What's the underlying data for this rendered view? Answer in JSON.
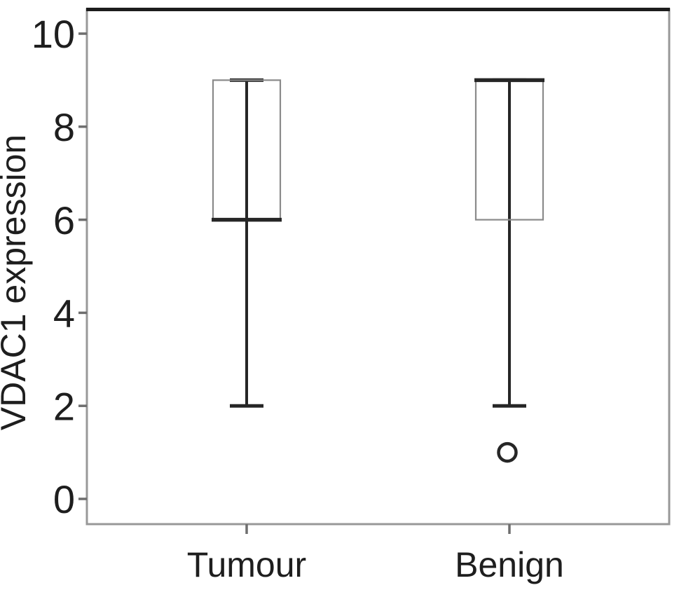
{
  "figure": {
    "background": "#ffffff"
  },
  "chart_data": {
    "type": "boxplot",
    "title": "",
    "ylabel": "VDAC1 expression",
    "xlabel": "",
    "categories": [
      "Tumour",
      "Benign"
    ],
    "yticks": [
      0,
      2,
      4,
      6,
      8,
      10
    ],
    "ylim": [
      -0.55,
      10.6
    ],
    "grid": false,
    "legend": "none",
    "series": [
      {
        "category": "Tumour",
        "whisker_low": 2,
        "q1": 6,
        "median": 6,
        "q3": 9,
        "whisker_high": 9,
        "outliers": []
      },
      {
        "category": "Benign",
        "whisker_low": 2,
        "q1": 6,
        "median": 9,
        "q3": 9,
        "whisker_high": 9,
        "outliers": [
          1
        ]
      }
    ],
    "marker": {
      "outlier_symbol": "open-circle"
    },
    "colors": {
      "heavy_line": "#262626",
      "box_outline": "#8a8a8a",
      "axis_line": "#989898",
      "top_border": "#1c1c1c",
      "tick_mark": "#6e6e6e",
      "text": "#1e1e1e"
    }
  }
}
